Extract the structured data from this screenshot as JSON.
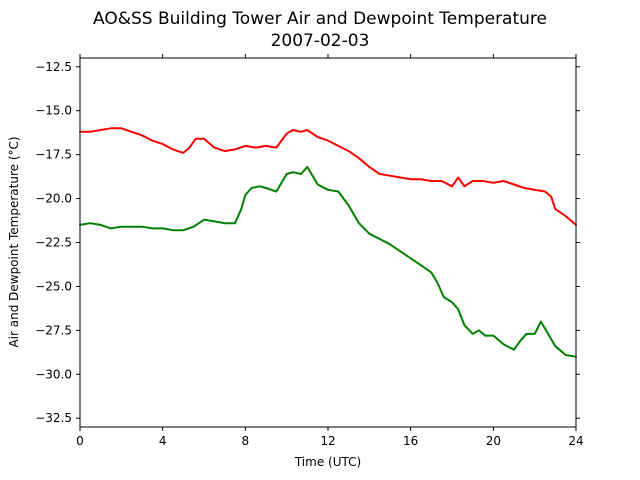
{
  "chart_data": {
    "type": "line",
    "title": "AO&SS Building Tower Air and Dewpoint Temperature",
    "subtitle": "2007-02-03",
    "xlabel": "Time (UTC)",
    "ylabel": "Air and Dewpoint Temperature (°C)",
    "xlim": [
      0,
      24
    ],
    "ylim": [
      -33,
      -12
    ],
    "xticks": [
      0,
      4,
      8,
      12,
      16,
      20,
      24
    ],
    "xtick_labels": [
      "0",
      "4",
      "8",
      "12",
      "16",
      "20",
      "24"
    ],
    "yticks": [
      -32.5,
      -30.0,
      -27.5,
      -25.0,
      -22.5,
      -20.0,
      -17.5,
      -15.0,
      -12.5
    ],
    "ytick_labels": [
      "−32.5",
      "−30.0",
      "−27.5",
      "−25.0",
      "−22.5",
      "−20.0",
      "−17.5",
      "−15.0",
      "−12.5"
    ],
    "grid": false,
    "series": [
      {
        "color": "#ff0000",
        "x": [
          0,
          0.5,
          1,
          1.5,
          2,
          2.5,
          3,
          3.5,
          4,
          4.5,
          5,
          5.3,
          5.6,
          6,
          6.5,
          7,
          7.5,
          8,
          8.5,
          9,
          9.5,
          10,
          10.3,
          10.7,
          11,
          11.5,
          12,
          12.5,
          13,
          13.5,
          14,
          14.5,
          15,
          15.5,
          16,
          16.5,
          17,
          17.5,
          18,
          18.3,
          18.6,
          19,
          19.5,
          20,
          20.5,
          21,
          21.5,
          22,
          22.5,
          22.8,
          23,
          23.5,
          24
        ],
        "y": [
          -16.2,
          -16.2,
          -16.1,
          -16.0,
          -16.0,
          -16.2,
          -16.4,
          -16.7,
          -16.9,
          -17.2,
          -17.4,
          -17.1,
          -16.6,
          -16.6,
          -17.1,
          -17.3,
          -17.2,
          -17.0,
          -17.1,
          -17.0,
          -17.1,
          -16.3,
          -16.1,
          -16.2,
          -16.1,
          -16.5,
          -16.7,
          -17.0,
          -17.3,
          -17.7,
          -18.2,
          -18.6,
          -18.7,
          -18.8,
          -18.9,
          -18.9,
          -19.0,
          -19.0,
          -19.3,
          -18.8,
          -19.3,
          -19.0,
          -19.0,
          -19.1,
          -19.0,
          -19.2,
          -19.4,
          -19.5,
          -19.6,
          -19.9,
          -20.6,
          -21.0,
          -21.5
        ]
      },
      {
        "color": "#008000",
        "x": [
          0,
          0.5,
          1,
          1.5,
          2,
          2.5,
          3,
          3.5,
          4,
          4.5,
          5,
          5.5,
          6,
          6.5,
          7,
          7.5,
          7.8,
          8,
          8.3,
          8.7,
          9,
          9.5,
          10,
          10.3,
          10.7,
          11,
          11.5,
          12,
          12.5,
          13,
          13.5,
          14,
          14.5,
          15,
          15.5,
          16,
          16.5,
          17,
          17.3,
          17.6,
          18,
          18.3,
          18.6,
          19,
          19.3,
          19.6,
          20,
          20.5,
          21,
          21.3,
          21.6,
          22,
          22.3,
          22.6,
          23,
          23.5,
          24
        ],
        "y": [
          -21.5,
          -21.4,
          -21.5,
          -21.7,
          -21.6,
          -21.6,
          -21.6,
          -21.7,
          -21.7,
          -21.8,
          -21.8,
          -21.6,
          -21.2,
          -21.3,
          -21.4,
          -21.4,
          -20.6,
          -19.8,
          -19.4,
          -19.3,
          -19.4,
          -19.6,
          -18.6,
          -18.5,
          -18.6,
          -18.2,
          -19.2,
          -19.5,
          -19.6,
          -20.4,
          -21.4,
          -22.0,
          -22.3,
          -22.6,
          -23.0,
          -23.4,
          -23.8,
          -24.2,
          -24.8,
          -25.6,
          -25.9,
          -26.3,
          -27.2,
          -27.7,
          -27.5,
          -27.8,
          -27.8,
          -28.3,
          -28.6,
          -28.1,
          -27.7,
          -27.7,
          -27.0,
          -27.6,
          -28.4,
          -28.9,
          -29.0
        ]
      }
    ]
  }
}
